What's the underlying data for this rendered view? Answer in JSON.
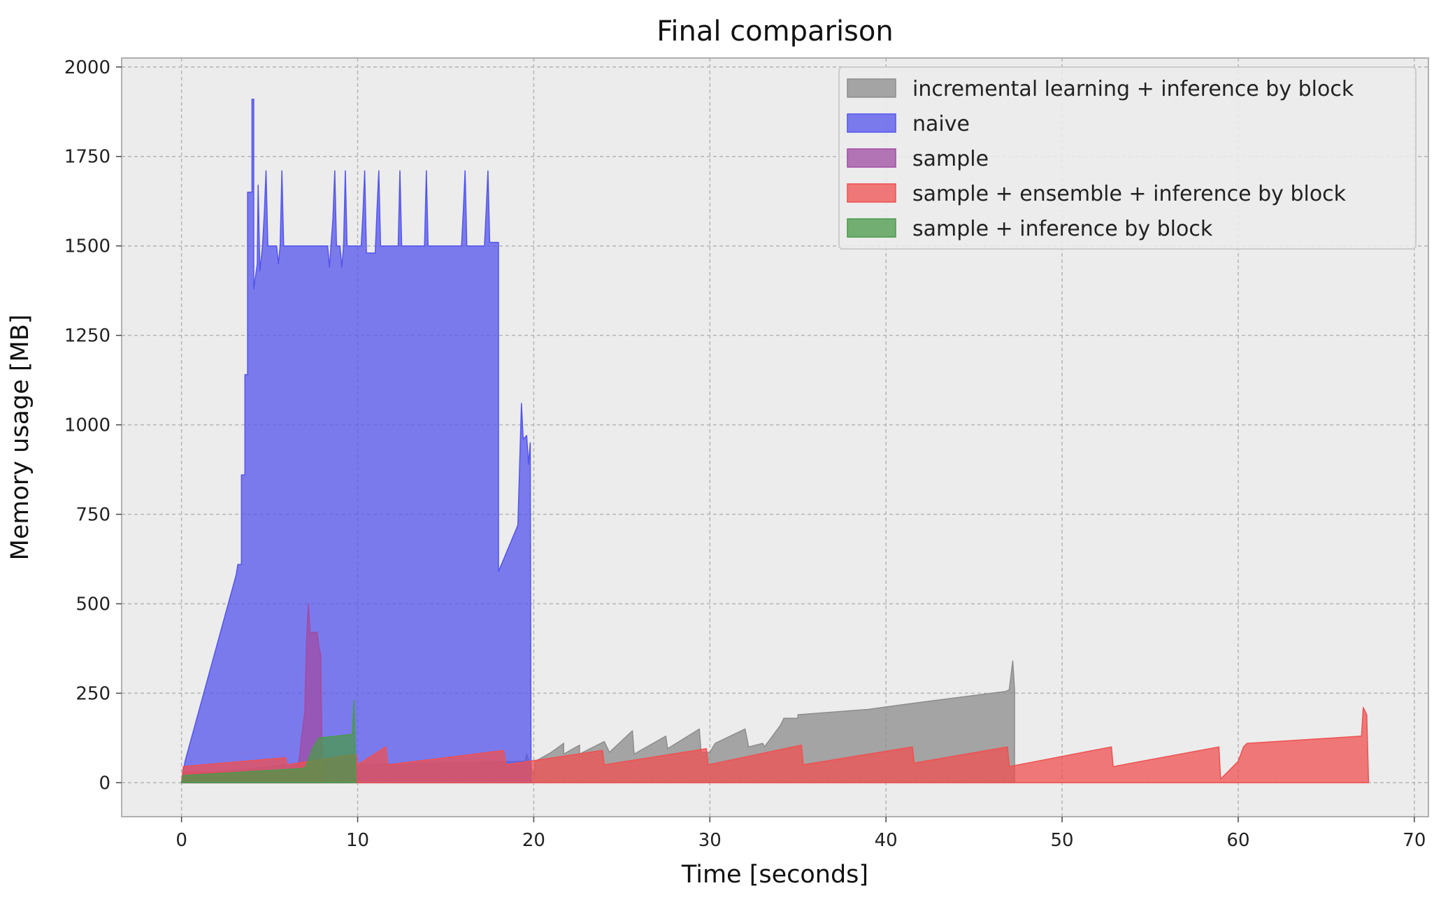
{
  "chart_data": {
    "type": "area",
    "title": "Final comparison",
    "xlabel": "Time [seconds]",
    "ylabel": "Memory usage [MB]",
    "xlim": [
      -3.4,
      70.8
    ],
    "ylim": [
      -95,
      2025
    ],
    "xticks": [
      0,
      10,
      20,
      30,
      40,
      50,
      60,
      70
    ],
    "yticks": [
      0,
      250,
      500,
      750,
      1000,
      1250,
      1500,
      1750,
      2000
    ],
    "grid": true,
    "legend_position": "top-right",
    "series": [
      {
        "name": "incremental learning + inference by block",
        "color": "#8c8c8c",
        "points": [
          [
            0,
            0
          ],
          [
            0.1,
            20
          ],
          [
            9.8,
            70
          ],
          [
            9.8,
            50
          ],
          [
            19.5,
            60
          ],
          [
            19.6,
            80
          ],
          [
            20,
            20
          ],
          [
            20.1,
            60
          ],
          [
            21,
            85
          ],
          [
            21.7,
            110
          ],
          [
            21.7,
            80
          ],
          [
            22.6,
            105
          ],
          [
            22.6,
            80
          ],
          [
            24,
            115
          ],
          [
            24.3,
            85
          ],
          [
            25.6,
            145
          ],
          [
            25.7,
            80
          ],
          [
            27.5,
            130
          ],
          [
            27.6,
            95
          ],
          [
            29.4,
            150
          ],
          [
            29.5,
            85
          ],
          [
            30,
            85
          ],
          [
            30.3,
            110
          ],
          [
            32,
            150
          ],
          [
            32.2,
            100
          ],
          [
            33,
            110
          ],
          [
            33.1,
            100
          ],
          [
            34,
            160
          ],
          [
            34.2,
            180
          ],
          [
            35,
            180
          ],
          [
            35,
            190
          ],
          [
            39,
            205
          ],
          [
            42,
            225
          ],
          [
            46,
            250
          ],
          [
            46.8,
            255
          ],
          [
            47,
            260
          ],
          [
            47.2,
            340
          ],
          [
            47.3,
            260
          ],
          [
            47.3,
            0
          ]
        ]
      },
      {
        "name": "naive",
        "color": "#5454ee",
        "points": [
          [
            0,
            0
          ],
          [
            0.2,
            60
          ],
          [
            3.1,
            580
          ],
          [
            3.2,
            610
          ],
          [
            3.4,
            610
          ],
          [
            3.4,
            860
          ],
          [
            3.6,
            860
          ],
          [
            3.6,
            1140
          ],
          [
            3.75,
            1140
          ],
          [
            3.75,
            1650
          ],
          [
            4,
            1650
          ],
          [
            4,
            1910
          ],
          [
            4.1,
            1910
          ],
          [
            4.1,
            1380
          ],
          [
            4.3,
            1450
          ],
          [
            4.35,
            1670
          ],
          [
            4.45,
            1430
          ],
          [
            4.6,
            1500
          ],
          [
            4.7,
            1590
          ],
          [
            4.8,
            1710
          ],
          [
            4.9,
            1500
          ],
          [
            5.4,
            1500
          ],
          [
            5.5,
            1450
          ],
          [
            5.6,
            1500
          ],
          [
            5.7,
            1710
          ],
          [
            5.8,
            1500
          ],
          [
            8.3,
            1500
          ],
          [
            8.4,
            1440
          ],
          [
            8.6,
            1580
          ],
          [
            8.7,
            1710
          ],
          [
            8.8,
            1500
          ],
          [
            9,
            1500
          ],
          [
            9.1,
            1440
          ],
          [
            9.2,
            1500
          ],
          [
            9.3,
            1710
          ],
          [
            9.4,
            1500
          ],
          [
            10.2,
            1500
          ],
          [
            10.3,
            1590
          ],
          [
            10.4,
            1710
          ],
          [
            10.5,
            1480
          ],
          [
            11,
            1480
          ],
          [
            11.1,
            1600
          ],
          [
            11.2,
            1710
          ],
          [
            11.3,
            1500
          ],
          [
            12.3,
            1500
          ],
          [
            12.4,
            1710
          ],
          [
            12.5,
            1500
          ],
          [
            13.8,
            1500
          ],
          [
            13.9,
            1710
          ],
          [
            14,
            1500
          ],
          [
            15.9,
            1500
          ],
          [
            16,
            1600
          ],
          [
            16.1,
            1710
          ],
          [
            16.2,
            1500
          ],
          [
            17.2,
            1500
          ],
          [
            17.3,
            1600
          ],
          [
            17.4,
            1710
          ],
          [
            17.5,
            1510
          ],
          [
            18,
            1510
          ],
          [
            18,
            590
          ],
          [
            19.1,
            720
          ],
          [
            19.3,
            1060
          ],
          [
            19.4,
            960
          ],
          [
            19.6,
            970
          ],
          [
            19.7,
            890
          ],
          [
            19.8,
            950
          ],
          [
            19.85,
            0
          ]
        ]
      },
      {
        "name": "sample",
        "color": "#a04ca3",
        "points": [
          [
            0,
            0
          ],
          [
            0.1,
            30
          ],
          [
            6.6,
            30
          ],
          [
            6.8,
            120
          ],
          [
            7,
            200
          ],
          [
            7.1,
            400
          ],
          [
            7.2,
            500
          ],
          [
            7.3,
            420
          ],
          [
            7.7,
            420
          ],
          [
            7.8,
            380
          ],
          [
            7.9,
            360
          ],
          [
            8,
            0
          ]
        ]
      },
      {
        "name": "sample + ensemble + inference by block",
        "color": "#f05050",
        "points": [
          [
            0,
            0
          ],
          [
            0.1,
            45
          ],
          [
            5.9,
            70
          ],
          [
            6,
            50
          ],
          [
            9.9,
            80
          ],
          [
            10,
            50
          ],
          [
            11.6,
            100
          ],
          [
            11.7,
            50
          ],
          [
            18.3,
            90
          ],
          [
            18.4,
            50
          ],
          [
            23.9,
            90
          ],
          [
            24,
            50
          ],
          [
            29.8,
            95
          ],
          [
            29.9,
            50
          ],
          [
            35.2,
            105
          ],
          [
            35.3,
            50
          ],
          [
            41.5,
            100
          ],
          [
            41.6,
            55
          ],
          [
            46.9,
            100
          ],
          [
            47,
            45
          ],
          [
            52.8,
            100
          ],
          [
            52.9,
            45
          ],
          [
            58.9,
            100
          ],
          [
            59,
            10
          ],
          [
            60,
            60
          ],
          [
            60.3,
            100
          ],
          [
            60.5,
            110
          ],
          [
            67,
            130
          ],
          [
            67.1,
            210
          ],
          [
            67.3,
            190
          ],
          [
            67.4,
            0
          ]
        ]
      },
      {
        "name": "sample + inference by block",
        "color": "#4a9a4a",
        "points": [
          [
            0,
            0
          ],
          [
            0.1,
            20
          ],
          [
            7,
            40
          ],
          [
            7.4,
            90
          ],
          [
            7.6,
            110
          ],
          [
            7.8,
            125
          ],
          [
            9.7,
            135
          ],
          [
            9.8,
            230
          ],
          [
            9.9,
            0
          ]
        ]
      }
    ]
  }
}
